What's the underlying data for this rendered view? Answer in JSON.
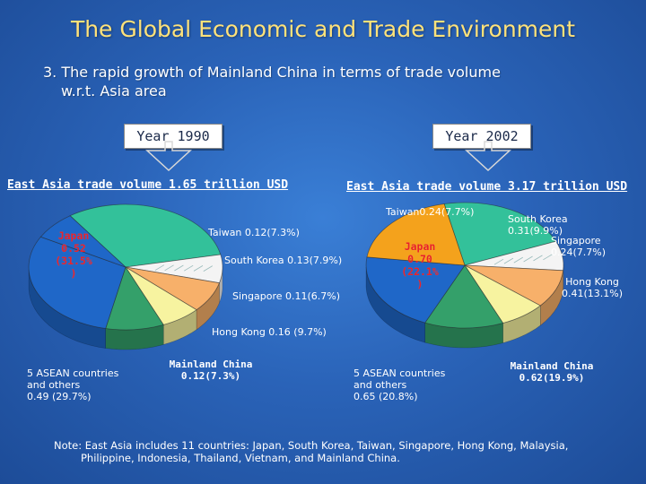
{
  "title": "The Global Economic and Trade Environment",
  "subtitle_line1": "3. The rapid growth of Mainland China in terms of trade volume",
  "subtitle_line2": "w.r.t. Asia area",
  "year_1990": "Year 1990",
  "year_2002": "Year 2002",
  "volume_1990": "East Asia trade volume 1.65 trillion USD",
  "volume_2002": "East Asia trade volume 3.17 trillion USD",
  "labels_1990": {
    "japan": [
      "Japan",
      "0.52",
      "(31.5%",
      ")"
    ],
    "taiwan": "Taiwan 0.12(7.3%)",
    "south_korea": "South Korea 0.13(7.9%)",
    "singapore": "Singapore 0.11(6.7%)",
    "hong_kong": "Hong Kong 0.16 (9.7%)",
    "asean": [
      "5 ASEAN countries",
      "and others",
      "0.49 (29.7%)"
    ],
    "mainland_china": [
      "Mainland China",
      "0.12(7.3%)"
    ]
  },
  "labels_2002": {
    "taiwan": "Taiwan0.24(7.7%)",
    "south_korea": [
      "South Korea",
      "0.31(9.9%)"
    ],
    "singapore": [
      "Singapore",
      "0.24(7.7%)"
    ],
    "japan": [
      "Japan",
      "0.70",
      "(22.1%",
      ")"
    ],
    "hong_kong": [
      "Hong Kong",
      "0.41(13.1%)"
    ],
    "asean": [
      "5 ASEAN countries",
      "and others",
      "0.65 (20.8%)"
    ],
    "mainland_china": [
      "Mainland China",
      "0.62(19.9%)"
    ]
  },
  "note_line1": "Note: East Asia includes 11 countries: Japan, South Korea, Taiwan, Singapore, Hong Kong, Malaysia,",
  "note_line2": "Philippine, Indonesia, Thailand, Vietnam, and Mainland China.",
  "colors": {
    "japan": "#33c19a",
    "taiwan": "#f4f4f4",
    "south_korea": "#f7b06a",
    "singapore": "#f7f3a0",
    "hong_kong": "#34a06a",
    "asean": "#1f67c8",
    "mainland_china_2002": "#f4a21c"
  },
  "chart_data": [
    {
      "type": "pie",
      "title": "Year 1990",
      "subtitle": "East Asia trade volume 1.65 trillion USD",
      "slices": [
        {
          "name": "Japan",
          "value": 0.52,
          "percent": 31.5
        },
        {
          "name": "Taiwan",
          "value": 0.12,
          "percent": 7.3
        },
        {
          "name": "South Korea",
          "value": 0.13,
          "percent": 7.9
        },
        {
          "name": "Singapore",
          "value": 0.11,
          "percent": 6.7
        },
        {
          "name": "Hong Kong",
          "value": 0.16,
          "percent": 9.7
        },
        {
          "name": "5 ASEAN countries and others",
          "value": 0.49,
          "percent": 29.7
        },
        {
          "name": "Mainland China",
          "value": 0.12,
          "percent": 7.3
        }
      ]
    },
    {
      "type": "pie",
      "title": "Year 2002",
      "subtitle": "East Asia trade volume 3.17 trillion USD",
      "slices": [
        {
          "name": "Japan",
          "value": 0.7,
          "percent": 22.1
        },
        {
          "name": "Taiwan",
          "value": 0.24,
          "percent": 7.7
        },
        {
          "name": "South Korea",
          "value": 0.31,
          "percent": 9.9
        },
        {
          "name": "Singapore",
          "value": 0.24,
          "percent": 7.7
        },
        {
          "name": "Hong Kong",
          "value": 0.41,
          "percent": 13.1
        },
        {
          "name": "5 ASEAN countries and others",
          "value": 0.65,
          "percent": 20.8
        },
        {
          "name": "Mainland China",
          "value": 0.62,
          "percent": 19.9
        }
      ]
    }
  ]
}
